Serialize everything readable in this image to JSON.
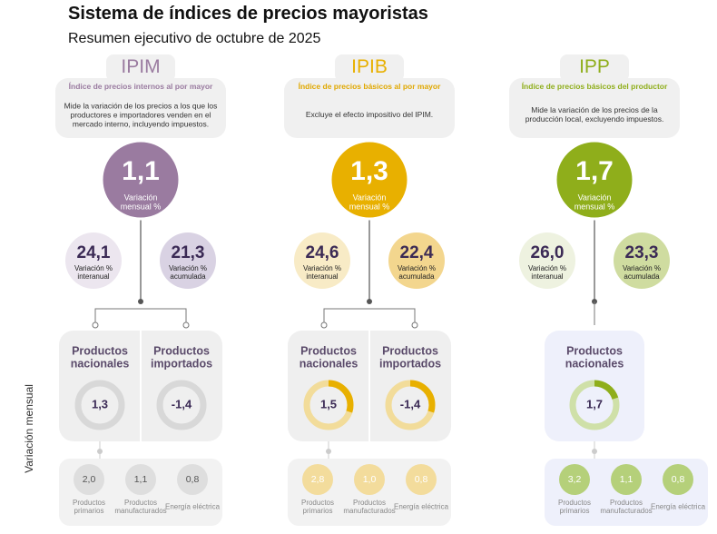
{
  "header": {
    "title": "Sistema de índices de precios mayoristas",
    "subtitle": "Resumen ejecutivo de octubre de 2025"
  },
  "side_label": "Variación mensual",
  "indices": [
    {
      "name": "IPIM",
      "heading": "Índice de precios internos al por mayor",
      "description": "Mide la variación de los precios a los que los productores e importadores venden en el mercado interno, incluyendo impuestos.",
      "monthly": {
        "value": "1,1",
        "label": "Variación mensual %"
      },
      "annual": {
        "value": "24,1",
        "label": "Variación % interanual"
      },
      "cumulative": {
        "value": "21,3",
        "label": "Variación % acumulada"
      },
      "products": [
        {
          "label": "Productos nacionales",
          "value": "1,3"
        },
        {
          "label": "Productos importados",
          "value": "-1,4"
        }
      ],
      "components": [
        {
          "value": "2,0",
          "label": "Productos primarios"
        },
        {
          "value": "1,1",
          "label": "Productos manufacturados"
        },
        {
          "value": "0,8",
          "label": "Energía eléctrica"
        }
      ]
    },
    {
      "name": "IPIB",
      "heading": "Índice de precios básicos al por mayor",
      "description": "Excluye el efecto impositivo del IPIM.",
      "monthly": {
        "value": "1,3",
        "label": "Variación mensual %"
      },
      "annual": {
        "value": "24,6",
        "label": "Variación % interanual"
      },
      "cumulative": {
        "value": "22,4",
        "label": "Variación % acumulada"
      },
      "products": [
        {
          "label": "Productos nacionales",
          "value": "1,5"
        },
        {
          "label": "Productos importados",
          "value": "-1,4"
        }
      ],
      "components": [
        {
          "value": "2,8",
          "label": "Productos primarios"
        },
        {
          "value": "1,0",
          "label": "Productos manufacturados"
        },
        {
          "value": "0,8",
          "label": "Energía eléctrica"
        }
      ]
    },
    {
      "name": "IPP",
      "heading": "Índice de precios básicos del productor",
      "description": "Mide la variación de los precios de la producción local, excluyendo impuestos.",
      "monthly": {
        "value": "1,7",
        "label": "Variación mensual %"
      },
      "annual": {
        "value": "26,0",
        "label": "Variación % interanual"
      },
      "cumulative": {
        "value": "23,3",
        "label": "Variación % acumulada"
      },
      "products": [
        {
          "label": "Productos nacionales",
          "value": "1,7"
        }
      ],
      "components": [
        {
          "value": "3,2",
          "label": "Productos primarios"
        },
        {
          "value": "1,1",
          "label": "Productos manufacturados"
        },
        {
          "value": "0,8",
          "label": "Energía eléctrica"
        }
      ]
    }
  ]
}
